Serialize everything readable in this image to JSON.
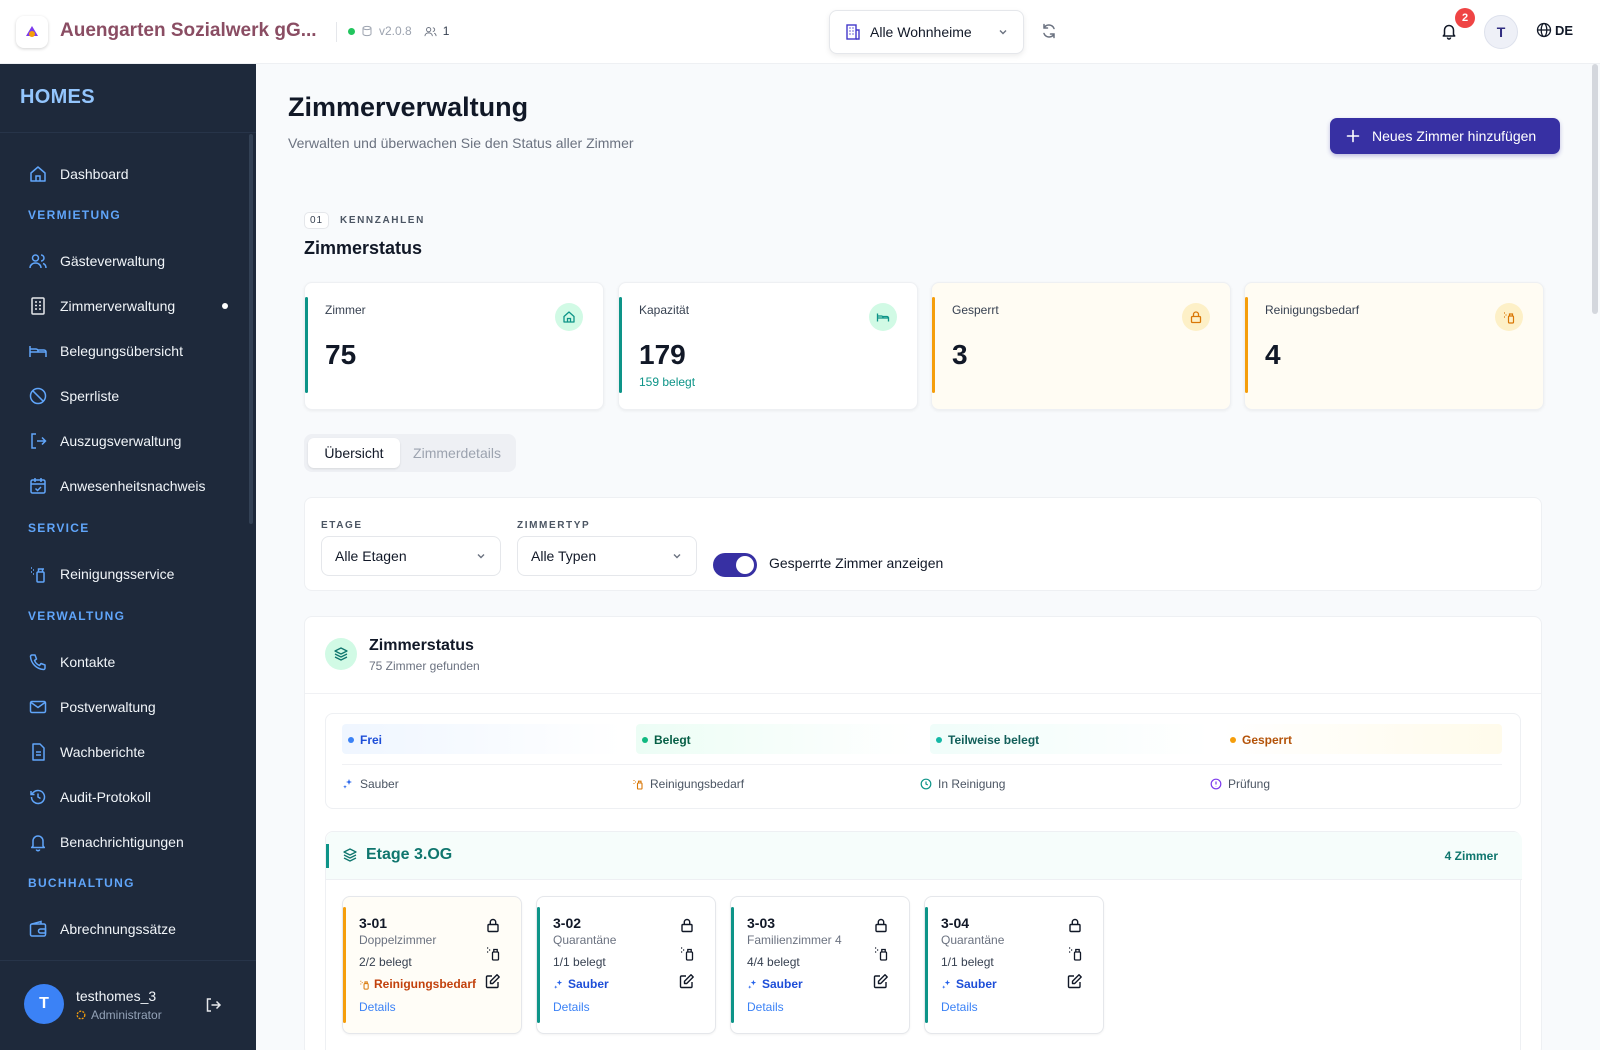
{
  "header": {
    "org_name": "Auengarten Sozialwerk gG...",
    "version": "v2.0.8",
    "users_online": "1",
    "wohnheim_select": "Alle Wohnheime",
    "notification_count": "2",
    "avatar_initial": "T",
    "language": "DE"
  },
  "sidebar": {
    "brand": "HOMES",
    "dashboard": "Dashboard",
    "sections": {
      "vermietung": "VERMIETUNG",
      "service": "SERVICE",
      "verwaltung": "VERWALTUNG",
      "buchhaltung": "BUCHHALTUNG"
    },
    "items": {
      "gaeste": "Gästeverwaltung",
      "zimmer": "Zimmerverwaltung",
      "belegung": "Belegungsübersicht",
      "sperrliste": "Sperrliste",
      "auszug": "Auszugsverwaltung",
      "anwesenheit": "Anwesenheitsnachweis",
      "reinigung": "Reinigungsservice",
      "kontakte": "Kontakte",
      "post": "Postverwaltung",
      "wachberichte": "Wachberichte",
      "audit": "Audit-Protokoll",
      "benachrichtigungen": "Benachrichtigungen",
      "abrechnung": "Abrechnungssätze"
    },
    "user": {
      "initial": "T",
      "name": "testhomes_3",
      "role": "Administrator"
    }
  },
  "main": {
    "title": "Zimmerverwaltung",
    "subtitle": "Verwalten und überwachen Sie den Status aller Zimmer",
    "add_button": "Neues Zimmer hinzufügen",
    "section_number": "01",
    "section_label": "KENNZAHLEN",
    "section_title": "Zimmerstatus",
    "stats": [
      {
        "label": "Zimmer",
        "value": "75",
        "sub": ""
      },
      {
        "label": "Kapazität",
        "value": "179",
        "sub": "159 belegt"
      },
      {
        "label": "Gesperrt",
        "value": "3",
        "sub": ""
      },
      {
        "label": "Reinigungsbedarf",
        "value": "4",
        "sub": ""
      }
    ],
    "tabs": [
      "Übersicht",
      "Zimmerdetails"
    ],
    "filters": {
      "etage_label": "ETAGE",
      "etage_value": "Alle Etagen",
      "zimmertyp_label": "ZIMMERTYP",
      "zimmertyp_value": "Alle Typen",
      "toggle_label": "Gesperrte Zimmer anzeigen"
    },
    "status_card": {
      "title": "Zimmerstatus",
      "subtitle": "75 Zimmer gefunden",
      "legend_occupancy": [
        "Frei",
        "Belegt",
        "Teilweise belegt",
        "Gesperrt"
      ],
      "legend_cleaning": [
        "Sauber",
        "Reinigungsbedarf",
        "In Reinigung",
        "Prüfung"
      ]
    },
    "floor": {
      "title": "Etage 3.OG",
      "count": "4 Zimmer",
      "rooms": [
        {
          "number": "3-01",
          "type": "Doppelzimmer",
          "occupancy": "2/2 belegt",
          "cleaning": "Reinigungsbedarf",
          "details": "Details"
        },
        {
          "number": "3-02",
          "type": "Quarantäne",
          "occupancy": "1/1 belegt",
          "cleaning": "Sauber",
          "details": "Details"
        },
        {
          "number": "3-03",
          "type": "Familienzimmer 4",
          "occupancy": "4/4 belegt",
          "cleaning": "Sauber",
          "details": "Details"
        },
        {
          "number": "3-04",
          "type": "Quarantäne",
          "occupancy": "1/1 belegt",
          "cleaning": "Sauber",
          "details": "Details"
        }
      ]
    }
  },
  "colors": {
    "primary": "#3730a3",
    "sidebar_bg": "#1e293b",
    "teal": "#0d9488",
    "amber": "#f59e0b",
    "org_name": "#8a4d63"
  }
}
